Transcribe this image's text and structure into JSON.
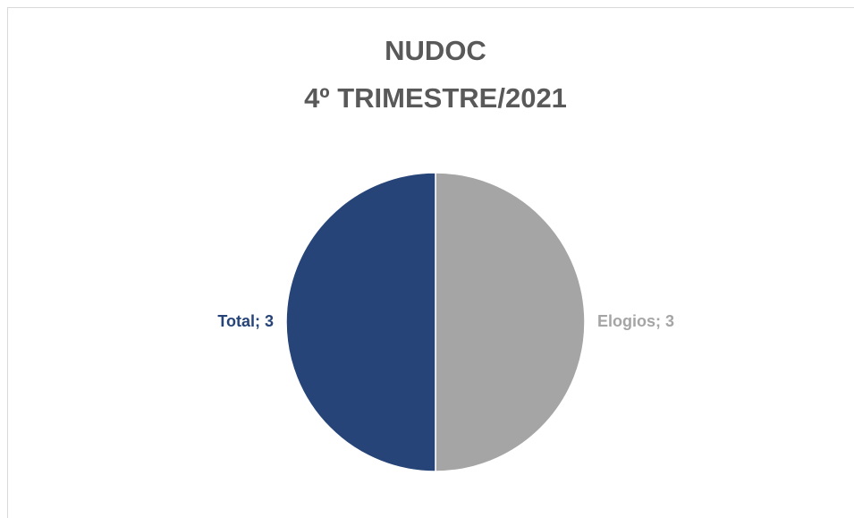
{
  "chart_data": {
    "type": "pie",
    "title": "NUDOC",
    "subtitle": "4º TRIMESTRE/2021",
    "categories": [
      "Elogios",
      "Total"
    ],
    "values": [
      3,
      3
    ],
    "value_labels": [
      "Elogios; 3",
      "Total; 3"
    ],
    "colors": [
      "#a5a5a5",
      "#264478"
    ]
  }
}
